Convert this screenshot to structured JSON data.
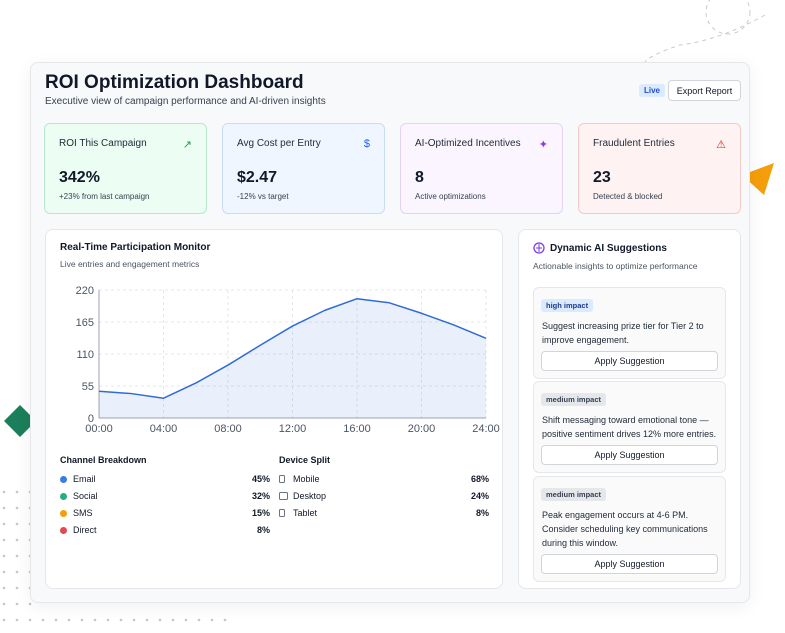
{
  "header": {
    "title": "ROI Optimization Dashboard",
    "subtitle": "Executive view of campaign performance and AI-driven insights",
    "badge": "Live",
    "button": "Export Report"
  },
  "kpis": [
    {
      "label": "ROI This Campaign",
      "value": "342%",
      "note": "+23% from last campaign"
    },
    {
      "label": "Avg Cost per Entry",
      "value": "$2.47",
      "note": "-12% vs target"
    },
    {
      "label": "AI-Optimized Incentives",
      "value": "8",
      "note": "Active optimizations"
    },
    {
      "label": "Fraudulent Entries",
      "value": "23",
      "note": "Detected & blocked"
    }
  ],
  "monitor": {
    "title": "Real-Time Participation Monitor",
    "subtitle": "Live entries and engagement metrics"
  },
  "chart_data": {
    "type": "line",
    "x": [
      0,
      2,
      4,
      6,
      8,
      10,
      12,
      14,
      16,
      18,
      20,
      22,
      24
    ],
    "values": [
      46,
      42,
      34,
      60,
      91,
      125,
      158,
      185,
      205,
      198,
      180,
      160,
      137
    ],
    "color": "#2f6bd8",
    "xlim": [
      0,
      24
    ],
    "xticks": [
      {
        "value": 0,
        "label": "00:00"
      },
      {
        "value": 4,
        "label": "04:00"
      },
      {
        "value": 8,
        "label": "08:00"
      },
      {
        "value": 12,
        "label": "12:00"
      },
      {
        "value": 16,
        "label": "16:00"
      },
      {
        "value": 20,
        "label": "20:00"
      },
      {
        "value": 24,
        "label": "24:00"
      }
    ],
    "ylim": [
      0,
      220
    ],
    "yticks": [
      0,
      55,
      110,
      165,
      220
    ],
    "grid": true
  },
  "channels": {
    "title": "Channel Breakdown",
    "items": [
      {
        "name": "Email",
        "share": "45%",
        "color": "#3b7be8"
      },
      {
        "name": "Social",
        "share": "32%",
        "color": "#22b07d"
      },
      {
        "name": "SMS",
        "share": "15%",
        "color": "#f59e0b"
      },
      {
        "name": "Direct",
        "share": "8%",
        "color": "#e5484d"
      }
    ]
  },
  "devices": {
    "title": "Device Split",
    "items": [
      {
        "name": "Mobile",
        "share": "68%"
      },
      {
        "name": "Desktop",
        "share": "24%"
      },
      {
        "name": "Tablet",
        "share": "8%"
      }
    ]
  },
  "suggestions": {
    "title": "Dynamic AI Suggestions",
    "subtitle": "Actionable insights to optimize performance",
    "items": [
      {
        "impact": "high impact",
        "text": "Suggest increasing prize tier for Tier 2 to improve engagement.",
        "action": "Apply Suggestion"
      },
      {
        "impact": "medium impact",
        "text": "Shift messaging toward emotional tone — positive sentiment drives 12% more entries.",
        "action": "Apply Suggestion"
      },
      {
        "impact": "medium impact",
        "text": "Peak engagement occurs at 4-6 PM. Consider scheduling key communications during this window.",
        "action": "Apply Suggestion"
      }
    ]
  }
}
